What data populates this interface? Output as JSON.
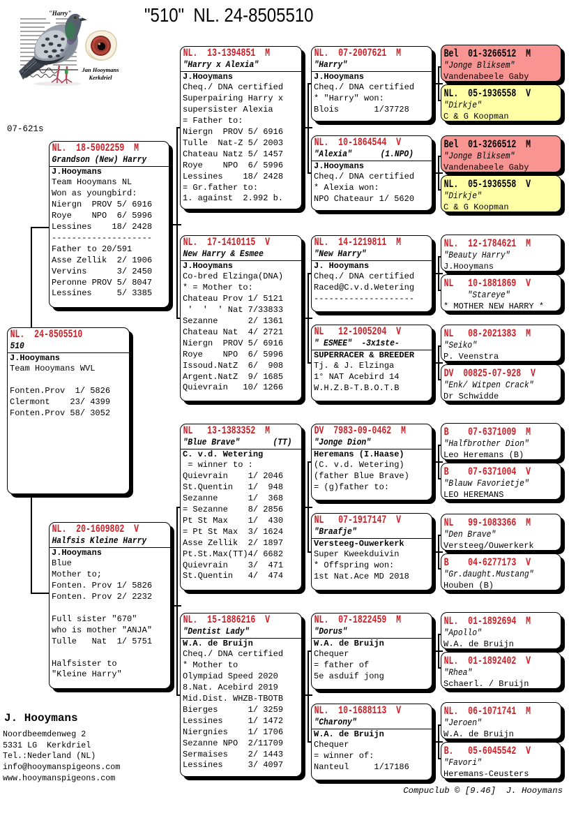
{
  "title": "\"510\"  NL. 24-8505510",
  "ring_label": "07-621s",
  "photo": {
    "pigeon_caption": "\"Harry\"",
    "credit_line1": "Jan Hooymans",
    "credit_line2": "Kerkdriel"
  },
  "colors": {
    "accent_red": "#CE2029",
    "box_pink": "#F89492",
    "box_yellow": "#FFFFA6"
  },
  "boxes": [
    {
      "id": "subject",
      "ring": "NL.  24-8505510",
      "name": "510",
      "owner": "J.Hooymans",
      "lines": [
        "Team Hooymans WVL",
        "",
        "Fonten.Prov  1/ 5826",
        "Clermont    23/ 4399",
        "Fonten.Prov 58/ 3052"
      ]
    },
    {
      "id": "father",
      "ring": "NL.  18-5002259  M",
      "name": "Grandson (New) Harry",
      "owner": "J.Hooymans",
      "lines": [
        "Team Hooymans NL",
        "Won as youngbird:",
        "Niergn  PROV 5/ 6916",
        "Roye    NPO  6/ 5996",
        "Lessines    18/ 2428",
        "--------------------",
        "Father to 20/591",
        "Asse Zellik  2/ 1906",
        "Vervins      3/ 2450",
        "Peronne PROV 5/ 8047",
        "Lessines     5/ 3385"
      ]
    },
    {
      "id": "mother",
      "ring": "NL.  20-1609802  V",
      "name": "Halfsis Kleine Harry",
      "owner": "J.Hooymans",
      "lines": [
        "Blue",
        "Mother to;",
        "Fonten. Prov 1/ 5826",
        "Fonten. Prov 2/ 2232",
        "",
        "Full sister \"670\"",
        "who is mother \"ANJA\"",
        "Tulle   Nat  1/ 5751",
        "",
        "Halfsister to",
        "\"Kleine Harry\""
      ]
    },
    {
      "id": "ff",
      "ring": "NL.  13-1394851  M",
      "name": "\"Harry x Alexia\"",
      "owner": "J.Hooymans",
      "lines": [
        "Cheq./ DNA certified",
        "Superpairing Harry x",
        "supersister Alexia",
        "= Father to:",
        "Niergn  PROV 5/ 6916",
        "Tulle  Nat-Z 5/ 2003",
        "Chateau Natz 5/ 1457",
        "Roye    NPO  6/ 5996",
        "Lessines    18/ 2428",
        "= Gr.father to:",
        "1. against  2.992 b."
      ]
    },
    {
      "id": "fm",
      "ring": "NL.  17-1410115  V",
      "name": "New Harry & Esmee",
      "owner": "J.Hooymans",
      "lines": [
        "Co-bred Elzinga(DNA)",
        "* = Mother to:",
        "Chateau Prov 1/ 5121",
        " '  '  ' Nat 7/33833",
        "Sezanne      2/ 1361",
        "Chateau Nat  4/ 2721",
        "Niergn  PROV 5/ 6916",
        "Roye    NPO  6/ 5996",
        "Issoud.NatZ  6/  908",
        "Argent.NatZ  9/ 1685",
        "Quievrain   10/ 1266"
      ]
    },
    {
      "id": "mf",
      "ring": "NL   13-1383352  M",
      "name": "\"Blue Brave\"       (TT)",
      "owner": "C. v.d. Wetering",
      "lines": [
        " = winner to :",
        "Quievrain    1/ 2046",
        "St.Quentin   1/  948",
        "Sezanne      1/  368",
        "= Sezanne    8/ 2856",
        "Pt St Max    1/  430",
        "= Pt St Max  3/ 1624",
        "Asse Zellik  2/ 1897",
        "Pt.St.Max(TT)4/ 6682",
        "Quievrain    3/  471",
        "St.Quentin   4/  474"
      ]
    },
    {
      "id": "mm",
      "ring": "NL.  15-1886216  V",
      "name": "\"Dentist Lady\"",
      "owner": "W.A. de Bruijn",
      "lines": [
        "Cheq./ DNA certified",
        "* Mother to",
        "Olympiad Speed 2020",
        "8.Nat. Acebird 2019",
        "Mid.Dist. WHZB-TBOTB",
        "Bierges      1/ 3259",
        "Lessines     1/ 1472",
        "Niergnies    1/ 1706",
        "Sezanne NPO  2/11709",
        "Sermaises    2/ 1443",
        "Lessines     3/ 4097"
      ]
    },
    {
      "id": "fff",
      "ring": "NL.  07-2007621  M",
      "name": "\"Harry\"",
      "owner": "J.Hooymans",
      "lines": [
        "Cheq./ DNA certified",
        "* \"Harry\" won:",
        "Blois       1/37728"
      ]
    },
    {
      "id": "ffm",
      "ring": "NL.  10-1864544  V",
      "name": "\"Alexia\"      (1.NPO)",
      "owner": "J.Hooymans",
      "lines": [
        "Cheq./ DNA certified",
        "* Alexia won:",
        "NPO Chateaur 1/ 5620"
      ]
    },
    {
      "id": "fmf",
      "ring": "NL.  14-1219811  M",
      "name": "\"New Harry\"",
      "owner": "J. Hooymans",
      "lines": [
        "Cheq./ DNA certified",
        "Raced@C.v.d.Wetering",
        "--------------------"
      ]
    },
    {
      "id": "fmm",
      "ring": "NL   12-1005204  V",
      "name": "\" ESMEE\"  -3x1ste-",
      "owner": "SUPERRACER & BREEDER",
      "lines": [
        "Tj. & J. Elzinga",
        "1° NAT Acebird 14",
        "W.H.Z.B-T.B.O.T.B"
      ]
    },
    {
      "id": "mff",
      "ring": "DV  7983-09-0462  M",
      "name": "\"Jonge Dion\"",
      "owner": "Heremans (I.Haase)",
      "lines": [
        "(C. v.d. Wetering)",
        "(father Blue Brave)",
        "= (g)father to:"
      ]
    },
    {
      "id": "mfm",
      "ring": "NL   07-1917147  V",
      "name": "\"Braafje\"",
      "owner": "Versteeg-Ouwerkerk",
      "lines": [
        "Super Kweekduivin",
        "* Offspring won:",
        "1st Nat.Ace MD 2018"
      ]
    },
    {
      "id": "mmf",
      "ring": "NL.  07-1822459  M",
      "name": "\"Dorus\"",
      "owner": "W.A. de Bruijn",
      "lines": [
        "Chequer",
        "= father of",
        "5e asduif jong"
      ]
    },
    {
      "id": "mmm",
      "ring": "NL.  10-1688113  V",
      "name": "\"Charony\"",
      "owner": "W.A. de Bruijn",
      "lines": [
        "Chequer",
        "= winner of:",
        "Nanteul     1/17186"
      ]
    },
    {
      "id": "p1",
      "ring": "Bel  01-3266512  M",
      "name": "\"Jonge Bliksem\"",
      "owner": "Vandenabeele Gaby",
      "bg": "pink",
      "lines": []
    },
    {
      "id": "p2",
      "ring": "NL.  05-1936558  V",
      "name": "\"Dirkje\"",
      "owner": "C & G Koopman",
      "bg": "yellow",
      "lines": []
    },
    {
      "id": "p3",
      "ring": "Bel  01-3266512  M",
      "name": "\"Jonge Bliksem\"",
      "owner": "Vandenabeele Gaby",
      "bg": "pink",
      "lines": []
    },
    {
      "id": "p4",
      "ring": "NL.  05-1936558  V",
      "name": "\"Dirkje\"",
      "owner": "C & G Koopman",
      "bg": "yellow",
      "lines": []
    },
    {
      "id": "p5",
      "ring": "NL.  12-1784621  M",
      "name": "\"Beauty Harry\"",
      "owner": "J.Hooymans",
      "lines": []
    },
    {
      "id": "p6",
      "ring": "NL   10-1881869  V",
      "name": "     \"Stareye\"",
      "owner": "* MOTHER NEW HARRY *",
      "lines": []
    },
    {
      "id": "p7",
      "ring": "NL   08-2021383  M",
      "name": "\"Seiko\"",
      "owner": "P. Veenstra",
      "lines": []
    },
    {
      "id": "p8",
      "ring": "DV  00825-07-928  V",
      "name": "\"Enk/ Witpen Crack\"",
      "owner": "Dr Schwidde",
      "lines": []
    },
    {
      "id": "p9",
      "ring": "B    07-6371009  M",
      "name": "\"Halfbrother Dion\"",
      "owner": "Leo Heremans (B)",
      "lines": []
    },
    {
      "id": "p10",
      "ring": "B    07-6371004  V",
      "name": "\"Blauw Favorietje\"",
      "owner": "LEO HEREMANS",
      "lines": []
    },
    {
      "id": "p11",
      "ring": "NL   99-1083366  M",
      "name": "\"Den Brave\"",
      "owner": "Versteeg/Ouwerkerk",
      "lines": []
    },
    {
      "id": "p12",
      "ring": "B    04-6277173  V",
      "name": "\"Gr.daught.Mustang\"",
      "owner": "Houben (B)",
      "lines": []
    },
    {
      "id": "p13",
      "ring": "NL.  01-1892694  M",
      "name": "\"Apollo\"",
      "owner": "W.A. de Bruijn",
      "lines": []
    },
    {
      "id": "p14",
      "ring": "NL.  01-1892402  V",
      "name": "\"Rhea\"",
      "owner": "Schaerl. / Bruijn",
      "lines": []
    },
    {
      "id": "p15",
      "ring": "NL.  06-1071741  M",
      "name": "\"Jeroen\"",
      "owner": "W.A. de Bruijn",
      "lines": []
    },
    {
      "id": "p16",
      "ring": "B.   05-6045542  V",
      "name": "\"Favori\"",
      "owner": "Heremans-Ceusters",
      "lines": []
    }
  ],
  "footer": {
    "owner_name": "J. Hooymans",
    "address": [
      "Noordbeemdenweg 2",
      "5331 LG  Kerkdriel",
      "Tel.:Nederland (NL)",
      "info@hooymanspigeons.com",
      "www.hooymanspigeons.com"
    ],
    "credit": "Compuclub © [9.46]  J. Hooymans"
  }
}
